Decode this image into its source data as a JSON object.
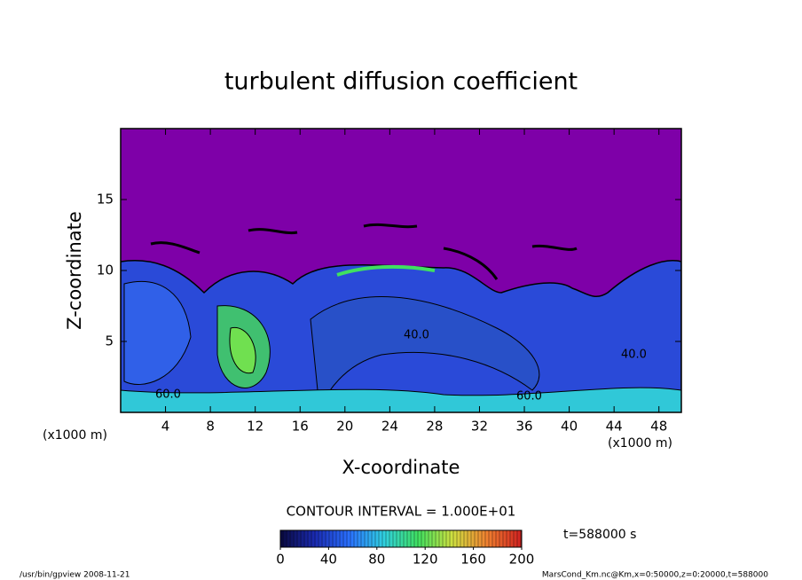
{
  "chart_data": {
    "type": "contour",
    "title": "turbulent diffusion coefficient",
    "xlabel": "X-coordinate",
    "ylabel": "Z-coordinate",
    "x_unit": "(x1000 m)",
    "xlim": [
      0,
      50
    ],
    "ylim": [
      0,
      20
    ],
    "xticks": [
      4,
      8,
      12,
      16,
      20,
      24,
      28,
      32,
      36,
      40,
      44,
      48
    ],
    "yticks": [
      5,
      10,
      15
    ],
    "contour_interval": "CONTOUR INTERVAL = 1.000E+01",
    "contour_labels": [
      "60.0",
      "40.0",
      "60.0",
      "40.0"
    ],
    "time_label": "t=588000 s",
    "colorbar": {
      "lim": [
        0,
        200
      ],
      "ticks": [
        0,
        40,
        80,
        120,
        160,
        200
      ],
      "colormap": [
        "#0a0a40",
        "#1a2ab0",
        "#2a70ff",
        "#30d0e0",
        "#40e060",
        "#d0e040",
        "#f08030",
        "#d02020"
      ]
    },
    "footer_left": "/usr/bin/gpview  2008-11-21",
    "footer_right": "MarsCond_Km.nc@Km,x=0:50000,z=0:20000,t=588000"
  }
}
